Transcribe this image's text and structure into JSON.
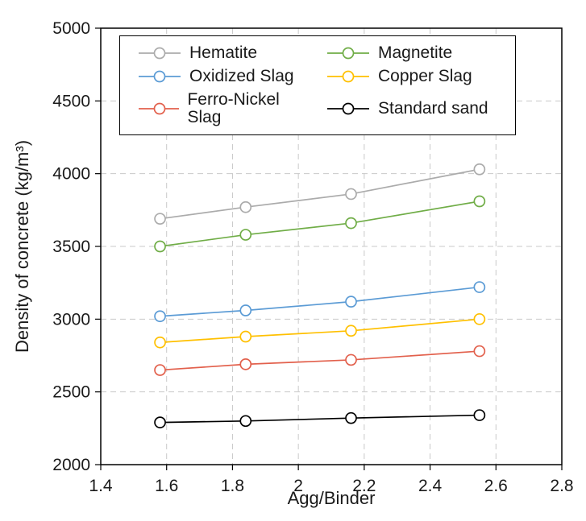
{
  "chart_data": {
    "type": "line",
    "title": "",
    "xlabel": "Agg/Binder",
    "ylabel": "Density of concrete (kg/m³)",
    "xlim": [
      1.4,
      2.8
    ],
    "ylim": [
      2000,
      5000
    ],
    "xticks": [
      1.4,
      1.6,
      1.8,
      2.0,
      2.2,
      2.4,
      2.6,
      2.8
    ],
    "xtick_labels": [
      "1.4",
      "1.6",
      "1.8",
      "2",
      "2.2",
      "2.4",
      "2.6",
      "2.8"
    ],
    "yticks": [
      2000,
      2500,
      3000,
      3500,
      4000,
      4500,
      5000
    ],
    "ytick_labels": [
      "2000",
      "2500",
      "3000",
      "3500",
      "4000",
      "4500",
      "5000"
    ],
    "grid": "dashed",
    "legend_position": "top-inside",
    "marker": {
      "shape": "open-circle",
      "fill": "#FFFFFF"
    },
    "x": [
      1.58,
      1.84,
      2.16,
      2.55
    ],
    "series": [
      {
        "name": "Hematite",
        "color": "#ABABAB",
        "values": [
          3690,
          3770,
          3860,
          4030
        ]
      },
      {
        "name": "Magnetite",
        "color": "#70AD47",
        "values": [
          3500,
          3580,
          3660,
          3810
        ]
      },
      {
        "name": "Oxidized Slag",
        "color": "#5B9BD5",
        "values": [
          3020,
          3060,
          3120,
          3220
        ]
      },
      {
        "name": "Copper Slag",
        "color": "#FFC000",
        "values": [
          2840,
          2880,
          2920,
          3000
        ]
      },
      {
        "name": "Ferro-Nickel Slag",
        "color": "#E2604C",
        "values": [
          2650,
          2690,
          2720,
          2780
        ]
      },
      {
        "name": "Standard sand",
        "color": "#000000",
        "values": [
          2290,
          2300,
          2320,
          2340
        ]
      }
    ],
    "legend_order": [
      "Hematite",
      "Magnetite",
      "Oxidized Slag",
      "Copper Slag",
      "Ferro-Nickel Slag",
      "Standard sand"
    ]
  }
}
